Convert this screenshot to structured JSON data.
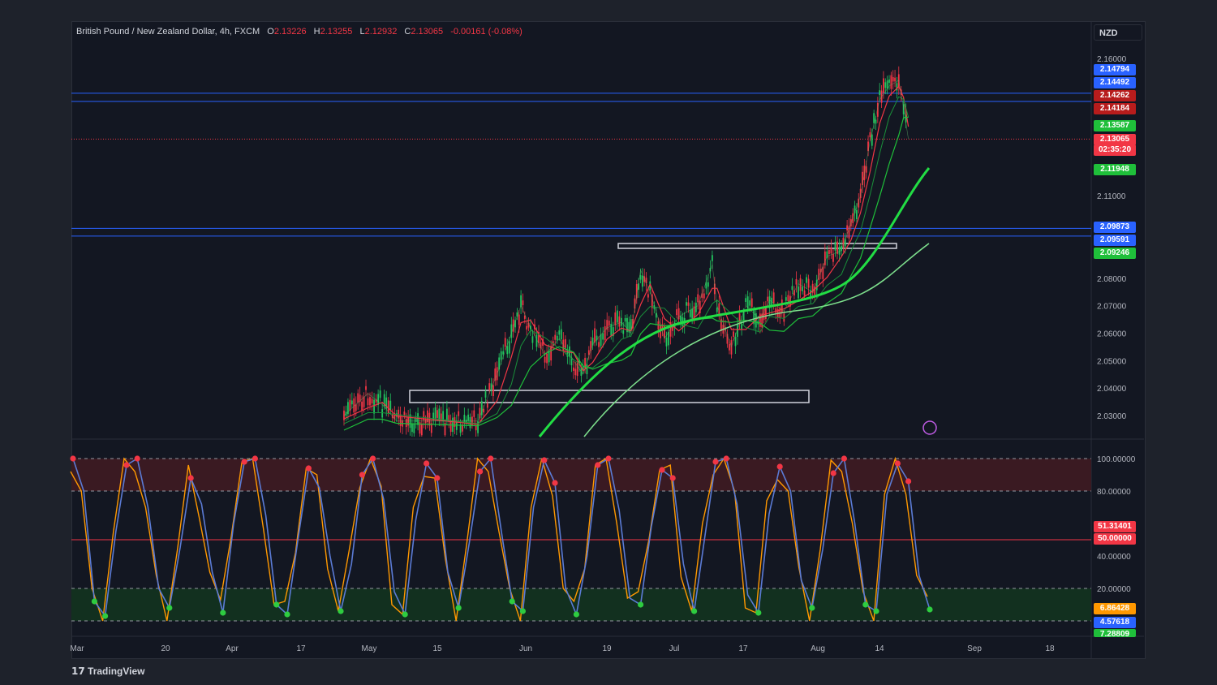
{
  "header": {
    "symbol": "British Pound / New Zealand Dollar, 4h, FXCM",
    "o_label": "O",
    "open": "2.13226",
    "h_label": "H",
    "high": "2.13255",
    "l_label": "L",
    "low": "2.12932",
    "c_label": "C",
    "close": "2.13065",
    "change": "-0.00161 (-0.08%)"
  },
  "currency": "NZD",
  "brand": "TradingView",
  "colors": {
    "up": "#22c55e",
    "down": "#f23645",
    "blue": "#2962ff",
    "osc_blue": "#5b7bd5",
    "osc_orange": "#ff9800",
    "bg": "#131722"
  },
  "chart_data": [
    {
      "type": "line",
      "title": "British Pound / New Zealand Dollar, 4h, FXCM",
      "x_ticks": [
        "Mar",
        "20",
        "Apr",
        "17",
        "May",
        "15",
        "Jun",
        "19",
        "Jul",
        "17",
        "Aug",
        "14",
        "Sep",
        "18"
      ],
      "y_ticks": [
        "2.16000",
        "2.11000",
        "2.08000",
        "2.07000",
        "2.06000",
        "2.05000",
        "2.04000",
        "2.03000"
      ],
      "ylim": [
        2.025,
        2.165
      ],
      "grid": false,
      "price_labels": [
        {
          "value": "2.14794",
          "color": "#2962ff"
        },
        {
          "value": "2.14492",
          "color": "#2962ff"
        },
        {
          "value": "2.14262",
          "color": "#b71c1c"
        },
        {
          "value": "2.14184",
          "color": "#b71c1c"
        },
        {
          "value": "2.13587",
          "color": "#1fbf3a"
        },
        {
          "value": "2.13065",
          "color": "#f23645"
        },
        {
          "value": "02:35:20",
          "color": "#f23645"
        },
        {
          "value": "2.11948",
          "color": "#1fbf3a"
        },
        {
          "value": "2.09873",
          "color": "#2962ff"
        },
        {
          "value": "2.09591",
          "color": "#2962ff"
        },
        {
          "value": "2.09246",
          "color": "#1fbf3a"
        }
      ],
      "horizontal_levels": [
        2.14794,
        2.14492,
        2.09873,
        2.09591
      ],
      "current_price": 2.13065,
      "series": [
        {
          "values": [
            {
              "x": "2023-04-26",
              "y": 2.03
            },
            {
              "x": "2023-05-01",
              "y": 2.038
            },
            {
              "x": "2023-05-04",
              "y": 2.034
            },
            {
              "x": "2023-05-07",
              "y": 2.028
            },
            {
              "x": "2023-05-24",
              "y": 2.028
            },
            {
              "x": "2023-05-28",
              "y": 2.045
            },
            {
              "x": "2023-05-31",
              "y": 2.06
            },
            {
              "x": "2023-06-02",
              "y": 2.07
            },
            {
              "x": "2023-06-04",
              "y": 2.062
            },
            {
              "x": "2023-06-07",
              "y": 2.052
            },
            {
              "x": "2023-06-10",
              "y": 2.058
            },
            {
              "x": "2023-06-13",
              "y": 2.05
            },
            {
              "x": "2023-06-15",
              "y": 2.045
            },
            {
              "x": "2023-06-17",
              "y": 2.056
            },
            {
              "x": "2023-06-20",
              "y": 2.062
            },
            {
              "x": "2023-06-23",
              "y": 2.064
            },
            {
              "x": "2023-06-25",
              "y": 2.06
            },
            {
              "x": "2023-06-27",
              "y": 2.083
            },
            {
              "x": "2023-06-29",
              "y": 2.075
            },
            {
              "x": "2023-07-02",
              "y": 2.058
            },
            {
              "x": "2023-07-05",
              "y": 2.066
            },
            {
              "x": "2023-07-09",
              "y": 2.07
            },
            {
              "x": "2023-07-12",
              "y": 2.085
            },
            {
              "x": "2023-07-13",
              "y": 2.07
            },
            {
              "x": "2023-07-16",
              "y": 2.055
            },
            {
              "x": "2023-07-19",
              "y": 2.07
            },
            {
              "x": "2023-07-22",
              "y": 2.065
            },
            {
              "x": "2023-07-24",
              "y": 2.072
            },
            {
              "x": "2023-07-27",
              "y": 2.068
            },
            {
              "x": "2023-07-30",
              "y": 2.078
            },
            {
              "x": "2023-08-02",
              "y": 2.075
            },
            {
              "x": "2023-08-05",
              "y": 2.088
            },
            {
              "x": "2023-08-08",
              "y": 2.09
            },
            {
              "x": "2023-08-10",
              "y": 2.1
            },
            {
              "x": "2023-08-12",
              "y": 2.11
            },
            {
              "x": "2023-08-14",
              "y": 2.13
            },
            {
              "x": "2023-08-16",
              "y": 2.145
            },
            {
              "x": "2023-08-18",
              "y": 2.15
            },
            {
              "x": "2023-08-20",
              "y": 2.152
            },
            {
              "x": "2023-08-21",
              "y": 2.142
            },
            {
              "x": "2023-08-22",
              "y": 2.1307
            }
          ]
        }
      ]
    },
    {
      "type": "line",
      "y_ticks": [
        "100.00000",
        "80.00000",
        "40.00000",
        "20.00000"
      ],
      "ylim": [
        0,
        100
      ],
      "levels": [
        100,
        80,
        50,
        20,
        0
      ],
      "value_labels": [
        {
          "value": "51.31401",
          "color": "#f23645"
        },
        {
          "value": "50.00000",
          "color": "#f23645"
        },
        {
          "value": "6.86428",
          "color": "#ff9800"
        },
        {
          "value": "4.57618",
          "color": "#2962ff"
        },
        {
          "value": "7.28809",
          "color": "#1fbf3a"
        }
      ],
      "series": [
        {
          "values": [
            100,
            80,
            12,
            3,
            55,
            96,
            100,
            70,
            20,
            8,
            45,
            88,
            72,
            30,
            5,
            60,
            98,
            100,
            65,
            10,
            4,
            50,
            94,
            82,
            40,
            6,
            35,
            90,
            100,
            75,
            18,
            4,
            62,
            97,
            88,
            30,
            8,
            48,
            92,
            100,
            55,
            12,
            6,
            70,
            99,
            85,
            20,
            4,
            40,
            96,
            100,
            68,
            14,
            10,
            58,
            93,
            88,
            35,
            6,
            52,
            98,
            100,
            72,
            16,
            5,
            66,
            95,
            80,
            25,
            8,
            44,
            91,
            100,
            60,
            10,
            6,
            78,
            97,
            86,
            28,
            7
          ]
        }
      ]
    }
  ]
}
